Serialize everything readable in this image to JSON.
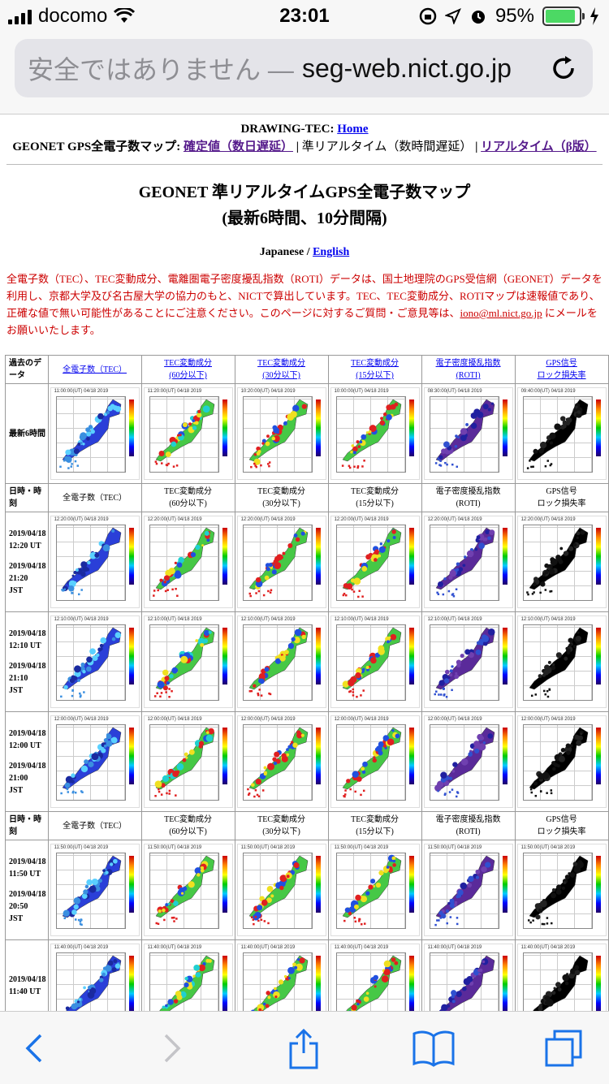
{
  "status": {
    "carrier": "docomo",
    "time": "23:01",
    "battery": "95%",
    "battery_level": 0.95
  },
  "browser": {
    "insecure_label": "安全ではありません —",
    "host": "seg-web.nict.go.jp"
  },
  "top": {
    "drawing_label": "DRAWING-TEC:",
    "home_link": "Home",
    "geonet_label": "GEONET GPS全電子数マップ:",
    "link1": "確定値（数日遅延）",
    "sep1": "|",
    "realtime_label": "準リアルタイム（数時間遅延）",
    "sep2": "|",
    "link2": "リアルタイム（β版）"
  },
  "title_line1": "GEONET 準リアルタイムGPS全電子数マップ",
  "title_line2": "(最新6時間、10分間隔)",
  "lang_prefix": "Japanese /",
  "lang_link": "English",
  "notice_text": "全電子数（TEC）、TEC変動成分、電離圏電子密度擾乱指数（ROTI）データは、国土地理院のGPS受信網（GEONET）データを利用し、京都大学及び名古屋大学の協力のもと、NICTで算出しています。TEC、TEC変動成分、ROTIマップは速報値であり、正確な値で無い可能性があることにご注意ください。このページに対するご質問・ご意見等は、",
  "notice_email": "iono@ml.nict.go.jp",
  "notice_suffix": "にメールをお願いいたします。",
  "header_row": {
    "past_data": "過去のデータ",
    "cols": [
      {
        "l1": "全電子数（TEC）",
        "l2": ""
      },
      {
        "l1": "TEC変動成分",
        "l2": "(60分以下)"
      },
      {
        "l1": "TEC変動成分",
        "l2": "(30分以下)"
      },
      {
        "l1": "TEC変動成分",
        "l2": "(15分以下)"
      },
      {
        "l1": "電子密度擾乱指数",
        "l2": "(ROTI)"
      },
      {
        "l1": "GPS信号",
        "l2": "ロック損失率"
      }
    ]
  },
  "latest": {
    "label": "最新6時間",
    "captions": [
      "11:00:00(UT) 04/18 2019",
      "11:20:00(UT) 04/18 2019",
      "10:20:00(UT) 04/18 2019",
      "10:00:00(UT) 04/18 2019",
      "08:30:00(UT) 04/18 2019",
      "09:40:00(UT) 04/18 2019"
    ]
  },
  "sub_header": {
    "label": "日時・時刻",
    "cols": [
      {
        "l1": "全電子数（TEC）",
        "l2": ""
      },
      {
        "l1": "TEC変動成分",
        "l2": "(60分以下)"
      },
      {
        "l1": "TEC変動成分",
        "l2": "(30分以下)"
      },
      {
        "l1": "TEC変動成分",
        "l2": "(15分以下)"
      },
      {
        "l1": "電子密度擾乱指数",
        "l2": "(ROTI)"
      },
      {
        "l1": "GPS信号",
        "l2": "ロック損失率"
      }
    ]
  },
  "rows": [
    {
      "date": "2019/04/18",
      "ut": "12:20 UT",
      "date2": "2019/04/18",
      "jst": "21:20",
      "jst_label": "JST",
      "caption": "12:20:00(UT) 04/18 2019"
    },
    {
      "date": "2019/04/18",
      "ut": "12:10 UT",
      "date2": "2019/04/18",
      "jst": "21:10",
      "jst_label": "JST",
      "caption": "12:10:00(UT) 04/18 2019"
    },
    {
      "date": "2019/04/18",
      "ut": "12:00 UT",
      "date2": "2019/04/18",
      "jst": "21:00",
      "jst_label": "JST",
      "caption": "12:00:00(UT) 04/18 2019"
    },
    {
      "date": "2019/04/18",
      "ut": "11:50 UT",
      "date2": "2019/04/18",
      "jst": "20:50",
      "jst_label": "JST",
      "caption": "11:50:00(UT) 04/18 2019"
    },
    {
      "date": "2019/04/18",
      "ut": "11:40 UT",
      "date2": "",
      "jst": "",
      "jst_label": "",
      "caption": "11:40:00(UT) 04/18 2019"
    }
  ],
  "colors": {
    "tec": "#2030e0",
    "roti": "#5a2a9a",
    "lol": "#000000",
    "var": "#3cc83c"
  },
  "icons": [
    "wifi-icon",
    "lock-rotation-icon",
    "location-icon",
    "alarm-icon",
    "charging-icon",
    "reload-icon",
    "back-icon",
    "forward-icon",
    "share-icon",
    "bookmarks-icon",
    "tabs-icon"
  ]
}
